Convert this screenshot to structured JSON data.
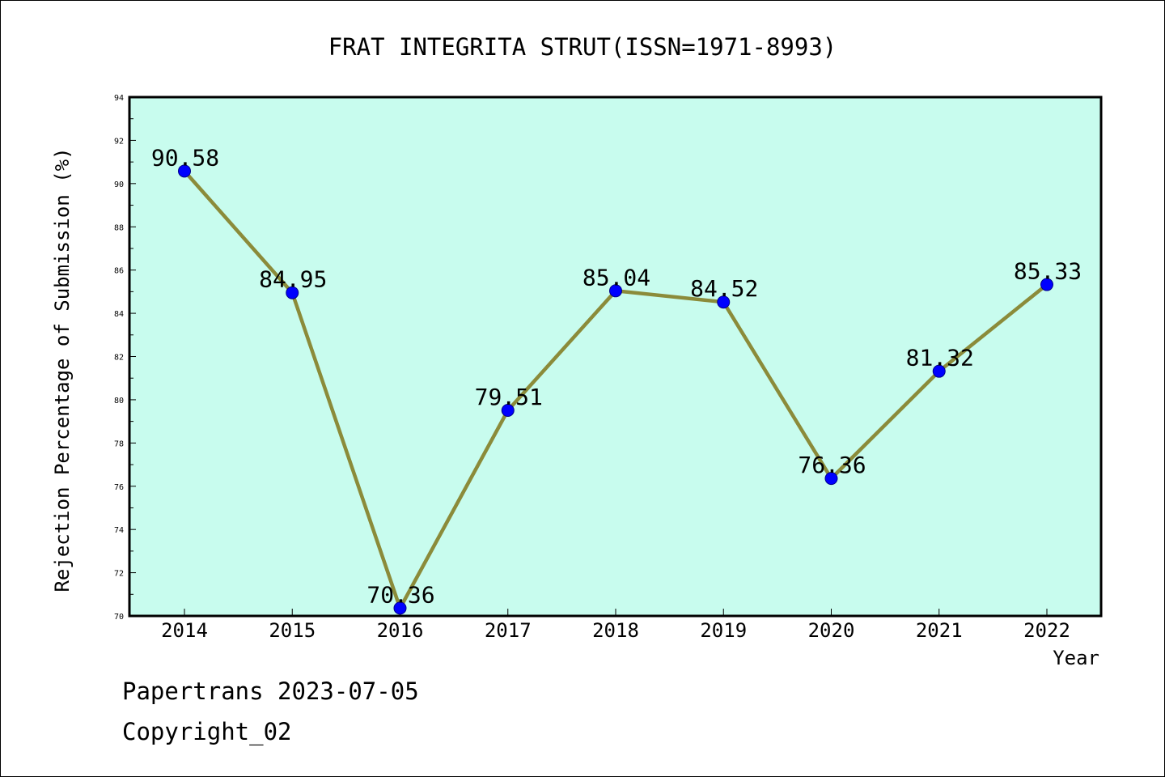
{
  "chart_data": {
    "type": "line",
    "title": "FRAT INTEGRITA STRUT(ISSN=1971-8993)",
    "xlabel": "Year",
    "ylabel": "Rejection Percentage of Submission (%)",
    "categories": [
      "2014",
      "2015",
      "2016",
      "2017",
      "2018",
      "2019",
      "2020",
      "2021",
      "2022"
    ],
    "series": [
      {
        "values": [
          90.58,
          84.95,
          70.36,
          79.51,
          85.04,
          84.52,
          76.36,
          81.32,
          85.33
        ]
      }
    ],
    "data_labels": [
      "90.58",
      "84.95",
      "70.36",
      "79.51",
      "85.04",
      "84.52",
      "76.36",
      "81.32",
      "85.33"
    ],
    "ylim": [
      70,
      94
    ],
    "yticks": [
      "70",
      "72",
      "74",
      "76",
      "78",
      "80",
      "82",
      "84",
      "86",
      "88",
      "90",
      "92",
      "94"
    ],
    "grid": false,
    "legend": "none",
    "colors": {
      "plot_background": "#c8fcee",
      "line": "#8b8b3a",
      "marker": "#0000ff"
    }
  },
  "footer": {
    "line1": "Papertrans 2023-07-05",
    "line2": "Copyright_02"
  }
}
